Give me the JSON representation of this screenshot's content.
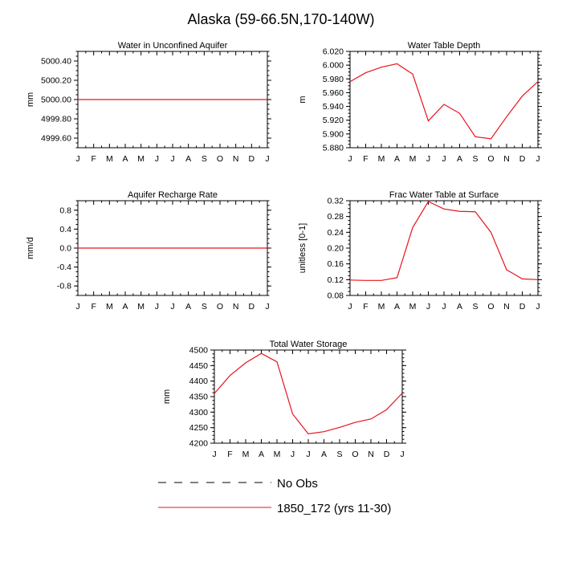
{
  "figure": {
    "title": "Alaska (59-66.5N,170-140W)"
  },
  "legend": {
    "entries": [
      {
        "name": "No Obs",
        "style": "dashed",
        "color": "#000000"
      },
      {
        "name": "1850_172 (yrs 11-30)",
        "style": "solid",
        "color": "#e8141e"
      }
    ]
  },
  "colors": {
    "model_line": "#e8141e",
    "axis": "#000000"
  },
  "chart_data": [
    {
      "type": "line",
      "title": "Water in Unconfined Aquifer",
      "xlabel": "",
      "ylabel": "mm",
      "categories": [
        "J",
        "F",
        "M",
        "A",
        "M",
        "J",
        "J",
        "A",
        "S",
        "O",
        "N",
        "D",
        "J"
      ],
      "ylim": [
        4999.5,
        5000.5
      ],
      "yticks": [
        4999.6,
        4999.8,
        5000.0,
        5000.2,
        5000.4
      ],
      "ytick_labels": [
        "4999.60",
        "4999.80",
        "5000.00",
        "5000.20",
        "5000.40"
      ],
      "series": [
        {
          "name": "1850_172 (yrs 11-30)",
          "values": [
            5000,
            5000,
            5000,
            5000,
            5000,
            5000,
            5000,
            5000,
            5000,
            5000,
            5000,
            5000,
            5000
          ]
        }
      ]
    },
    {
      "type": "line",
      "title": "Water Table Depth",
      "xlabel": "",
      "ylabel": "m",
      "categories": [
        "J",
        "F",
        "M",
        "A",
        "M",
        "J",
        "J",
        "A",
        "S",
        "O",
        "N",
        "D",
        "J"
      ],
      "ylim": [
        5.88,
        6.02
      ],
      "yticks": [
        5.88,
        5.9,
        5.92,
        5.94,
        5.96,
        5.98,
        6.0,
        6.02
      ],
      "ytick_labels": [
        "5.880",
        "5.900",
        "5.920",
        "5.940",
        "5.960",
        "5.980",
        "6.000",
        "6.020"
      ],
      "series": [
        {
          "name": "1850_172 (yrs 11-30)",
          "values": [
            5.976,
            5.989,
            5.997,
            6.002,
            5.987,
            5.919,
            5.943,
            5.93,
            5.896,
            5.893,
            5.925,
            5.955,
            5.976
          ]
        }
      ]
    },
    {
      "type": "line",
      "title": "Aquifer Recharge Rate",
      "xlabel": "",
      "ylabel": "mm/d",
      "categories": [
        "J",
        "F",
        "M",
        "A",
        "M",
        "J",
        "J",
        "A",
        "S",
        "O",
        "N",
        "D",
        "J"
      ],
      "ylim": [
        -1.0,
        1.0
      ],
      "yticks": [
        -0.8,
        -0.4,
        0.0,
        0.4,
        0.8
      ],
      "ytick_labels": [
        "-0.8",
        "-0.4",
        "0.0",
        "0.4",
        "0.8"
      ],
      "series": [
        {
          "name": "1850_172 (yrs 11-30)",
          "values": [
            0,
            0,
            0,
            0,
            0,
            0,
            0,
            0,
            0,
            0,
            0,
            0,
            0
          ]
        }
      ]
    },
    {
      "type": "line",
      "title": "Frac Water Table at Surface",
      "xlabel": "",
      "ylabel": "unitless [0-1]",
      "categories": [
        "J",
        "F",
        "M",
        "A",
        "M",
        "J",
        "J",
        "A",
        "S",
        "O",
        "N",
        "D",
        "J"
      ],
      "ylim": [
        0.08,
        0.32
      ],
      "yticks": [
        0.08,
        0.12,
        0.16,
        0.2,
        0.24,
        0.28,
        0.32
      ],
      "ytick_labels": [
        "0.08",
        "0.12",
        "0.16",
        "0.20",
        "0.24",
        "0.28",
        "0.32"
      ],
      "series": [
        {
          "name": "1850_172 (yrs 11-30)",
          "values": [
            0.119,
            0.118,
            0.118,
            0.125,
            0.252,
            0.318,
            0.299,
            0.293,
            0.292,
            0.24,
            0.145,
            0.122,
            0.12
          ]
        }
      ]
    },
    {
      "type": "line",
      "title": "Total Water Storage",
      "xlabel": "",
      "ylabel": "mm",
      "categories": [
        "J",
        "F",
        "M",
        "A",
        "M",
        "J",
        "J",
        "A",
        "S",
        "O",
        "N",
        "D",
        "J"
      ],
      "ylim": [
        4200,
        4500
      ],
      "yticks": [
        4200,
        4250,
        4300,
        4350,
        4400,
        4450,
        4500
      ],
      "ytick_labels": [
        "4200",
        "4250",
        "4300",
        "4350",
        "4400",
        "4450",
        "4500"
      ],
      "series": [
        {
          "name": "1850_172 (yrs 11-30)",
          "values": [
            4360,
            4418,
            4459,
            4489,
            4462,
            4294,
            4230,
            4237,
            4251,
            4267,
            4278,
            4308,
            4361
          ]
        }
      ]
    }
  ]
}
